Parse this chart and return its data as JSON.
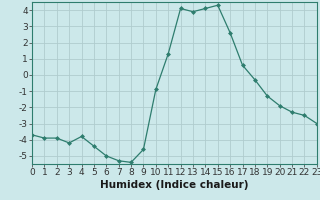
{
  "x": [
    0,
    1,
    2,
    3,
    4,
    5,
    6,
    7,
    8,
    9,
    10,
    11,
    12,
    13,
    14,
    15,
    16,
    17,
    18,
    19,
    20,
    21,
    22,
    23
  ],
  "y": [
    -3.7,
    -3.9,
    -3.9,
    -4.2,
    -3.8,
    -4.4,
    -5.0,
    -5.3,
    -5.4,
    -4.6,
    -0.9,
    1.3,
    4.1,
    3.9,
    4.1,
    4.3,
    2.6,
    0.6,
    -0.3,
    -1.3,
    -1.9,
    -2.3,
    -2.5,
    -3.0
  ],
  "line_color": "#2e7d6e",
  "marker": "D",
  "marker_size": 2.0,
  "bg_color": "#cce8ea",
  "grid_color": "#b0ccce",
  "xlabel": "Humidex (Indice chaleur)",
  "xlim": [
    0,
    23
  ],
  "ylim": [
    -5.5,
    4.5
  ],
  "yticks": [
    -5,
    -4,
    -3,
    -2,
    -1,
    0,
    1,
    2,
    3,
    4
  ],
  "xticks": [
    0,
    1,
    2,
    3,
    4,
    5,
    6,
    7,
    8,
    9,
    10,
    11,
    12,
    13,
    14,
    15,
    16,
    17,
    18,
    19,
    20,
    21,
    22,
    23
  ],
  "tick_fontsize": 6.5,
  "xlabel_fontsize": 7.5
}
